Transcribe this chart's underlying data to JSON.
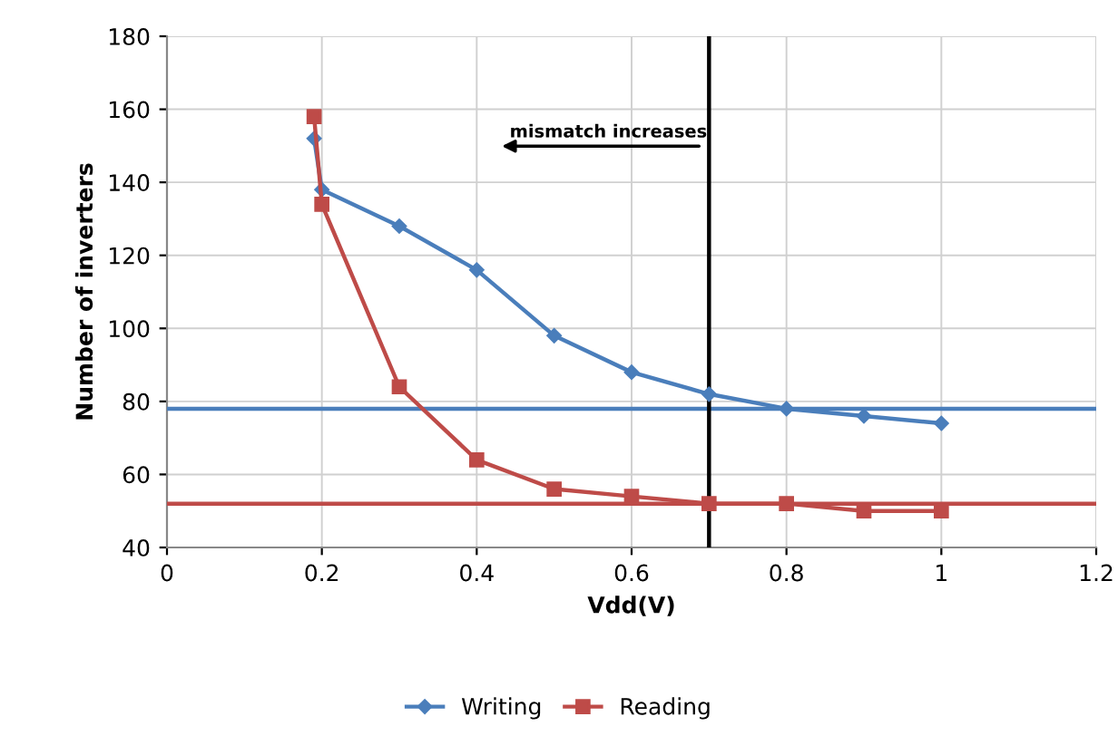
{
  "chart_data": {
    "type": "line",
    "xlabel": "Vdd(V)",
    "ylabel": "Number of inverters",
    "series": [
      {
        "name": "Writing",
        "color": "#4a7ebb",
        "marker": "diamond",
        "x": [
          0.19,
          0.2,
          0.3,
          0.4,
          0.5,
          0.6,
          0.7,
          0.8,
          0.9,
          1
        ],
        "values": [
          152,
          138,
          128,
          116,
          98,
          88,
          82,
          78,
          76,
          74
        ]
      },
      {
        "name": "Reading",
        "color": "#be4b48",
        "marker": "square",
        "x": [
          0.19,
          0.2,
          0.3,
          0.4,
          0.5,
          0.6,
          0.7,
          0.8,
          0.9,
          1
        ],
        "values": [
          158,
          134,
          84,
          64,
          56,
          54,
          52,
          52,
          50,
          50
        ]
      }
    ],
    "xlim": [
      0,
      1.2
    ],
    "xticks": [
      0,
      0.2,
      0.4,
      0.6,
      0.8,
      1,
      1.2
    ],
    "ylim": [
      40,
      180
    ],
    "yticks": [
      40,
      60,
      80,
      100,
      120,
      140,
      160,
      180
    ],
    "ref_lines": [
      {
        "axis": "y",
        "value": 78,
        "color": "#4a7ebb"
      },
      {
        "axis": "y",
        "value": 52,
        "color": "#be4b48"
      },
      {
        "axis": "x",
        "value": 0.7,
        "color": "#000000"
      }
    ],
    "annotations": [
      "mismatch increases"
    ],
    "grid": true,
    "legend": "bottom",
    "line_style": "solid"
  }
}
